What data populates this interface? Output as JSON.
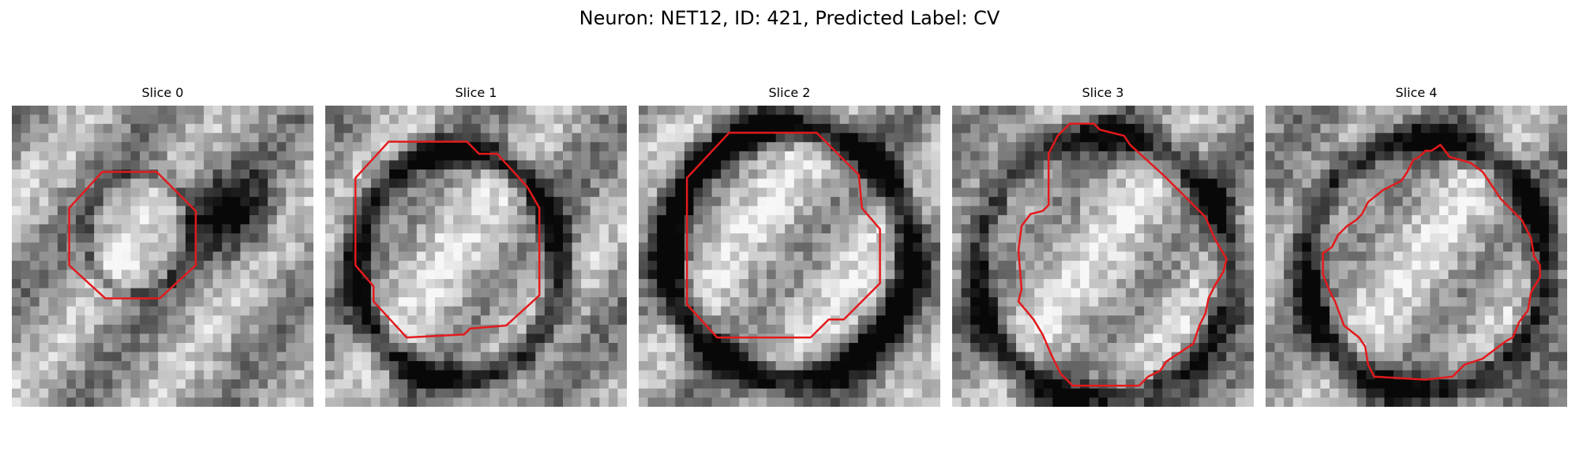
{
  "figure": {
    "title": "Neuron: NET12, ID: 421, Predicted Label: CV"
  },
  "contour_color": "#e31a1c",
  "panels": [
    {
      "title": "Slice 0",
      "cell_center": [
        0.42,
        0.42
      ],
      "cell_radius": [
        0.18,
        0.2
      ],
      "ring_darkness": 0.25,
      "dark_blob": [
        0.72,
        0.35
      ],
      "seed": 11,
      "contour": [
        [
          0.3,
          0.22
        ],
        [
          0.48,
          0.22
        ],
        [
          0.61,
          0.35
        ],
        [
          0.61,
          0.53
        ],
        [
          0.49,
          0.64
        ],
        [
          0.31,
          0.64
        ],
        [
          0.19,
          0.53
        ],
        [
          0.19,
          0.34
        ]
      ]
    },
    {
      "title": "Slice 1",
      "cell_center": [
        0.44,
        0.53
      ],
      "cell_radius": [
        0.34,
        0.38
      ],
      "ring_darkness": 0.6,
      "dark_blob": null,
      "seed": 23,
      "contour": [
        [
          0.21,
          0.12
        ],
        [
          0.47,
          0.12
        ],
        [
          0.51,
          0.16
        ],
        [
          0.57,
          0.16
        ],
        [
          0.67,
          0.27
        ],
        [
          0.71,
          0.34
        ],
        [
          0.71,
          0.63
        ],
        [
          0.6,
          0.73
        ],
        [
          0.48,
          0.74
        ],
        [
          0.46,
          0.76
        ],
        [
          0.27,
          0.77
        ],
        [
          0.16,
          0.65
        ],
        [
          0.16,
          0.6
        ],
        [
          0.1,
          0.53
        ],
        [
          0.1,
          0.24
        ]
      ]
    },
    {
      "title": "Slice 2",
      "cell_center": [
        0.5,
        0.49
      ],
      "cell_radius": [
        0.4,
        0.42
      ],
      "ring_darkness": 0.7,
      "dark_blob": null,
      "seed": 37,
      "contour": [
        [
          0.3,
          0.09
        ],
        [
          0.59,
          0.09
        ],
        [
          0.73,
          0.23
        ],
        [
          0.74,
          0.34
        ],
        [
          0.8,
          0.41
        ],
        [
          0.8,
          0.59
        ],
        [
          0.68,
          0.71
        ],
        [
          0.63,
          0.71
        ],
        [
          0.57,
          0.77
        ],
        [
          0.26,
          0.77
        ],
        [
          0.16,
          0.66
        ],
        [
          0.16,
          0.24
        ]
      ]
    },
    {
      "title": "Slice 3",
      "cell_center": [
        0.5,
        0.54
      ],
      "cell_radius": [
        0.42,
        0.44
      ],
      "ring_darkness": 0.55,
      "dark_blob": null,
      "seed": 41,
      "contour": [
        [
          0.39,
          0.06
        ],
        [
          0.47,
          0.06
        ],
        [
          0.49,
          0.08
        ],
        [
          0.57,
          0.1
        ],
        [
          0.59,
          0.13
        ],
        [
          0.7,
          0.23
        ],
        [
          0.84,
          0.37
        ],
        [
          0.87,
          0.44
        ],
        [
          0.91,
          0.51
        ],
        [
          0.9,
          0.55
        ],
        [
          0.87,
          0.6
        ],
        [
          0.85,
          0.64
        ],
        [
          0.84,
          0.69
        ],
        [
          0.82,
          0.73
        ],
        [
          0.8,
          0.79
        ],
        [
          0.71,
          0.85
        ],
        [
          0.69,
          0.88
        ],
        [
          0.65,
          0.9
        ],
        [
          0.62,
          0.93
        ],
        [
          0.55,
          0.93
        ],
        [
          0.4,
          0.93
        ],
        [
          0.36,
          0.89
        ],
        [
          0.33,
          0.83
        ],
        [
          0.3,
          0.76
        ],
        [
          0.27,
          0.71
        ],
        [
          0.22,
          0.65
        ],
        [
          0.23,
          0.61
        ],
        [
          0.22,
          0.48
        ],
        [
          0.23,
          0.4
        ],
        [
          0.26,
          0.36
        ],
        [
          0.3,
          0.35
        ],
        [
          0.32,
          0.33
        ],
        [
          0.32,
          0.16
        ],
        [
          0.35,
          0.1
        ]
      ]
    },
    {
      "title": "Slice 4",
      "cell_center": [
        0.53,
        0.53
      ],
      "cell_radius": [
        0.4,
        0.42
      ],
      "ring_darkness": 0.6,
      "dark_blob": null,
      "seed": 53,
      "contour": [
        [
          0.58,
          0.13
        ],
        [
          0.61,
          0.17
        ],
        [
          0.68,
          0.19
        ],
        [
          0.72,
          0.22
        ],
        [
          0.78,
          0.31
        ],
        [
          0.85,
          0.38
        ],
        [
          0.88,
          0.44
        ],
        [
          0.89,
          0.5
        ],
        [
          0.91,
          0.53
        ],
        [
          0.91,
          0.57
        ],
        [
          0.88,
          0.62
        ],
        [
          0.87,
          0.68
        ],
        [
          0.84,
          0.72
        ],
        [
          0.82,
          0.77
        ],
        [
          0.8,
          0.78
        ],
        [
          0.72,
          0.84
        ],
        [
          0.66,
          0.86
        ],
        [
          0.62,
          0.9
        ],
        [
          0.53,
          0.91
        ],
        [
          0.36,
          0.9
        ],
        [
          0.34,
          0.86
        ],
        [
          0.33,
          0.8
        ],
        [
          0.31,
          0.77
        ],
        [
          0.26,
          0.73
        ],
        [
          0.23,
          0.65
        ],
        [
          0.21,
          0.61
        ],
        [
          0.19,
          0.56
        ],
        [
          0.19,
          0.49
        ],
        [
          0.22,
          0.47
        ],
        [
          0.24,
          0.43
        ],
        [
          0.27,
          0.4
        ],
        [
          0.3,
          0.38
        ],
        [
          0.32,
          0.36
        ],
        [
          0.34,
          0.32
        ],
        [
          0.39,
          0.28
        ],
        [
          0.45,
          0.25
        ],
        [
          0.47,
          0.22
        ],
        [
          0.49,
          0.18
        ],
        [
          0.51,
          0.17
        ],
        [
          0.53,
          0.15
        ],
        [
          0.55,
          0.15
        ]
      ]
    }
  ]
}
